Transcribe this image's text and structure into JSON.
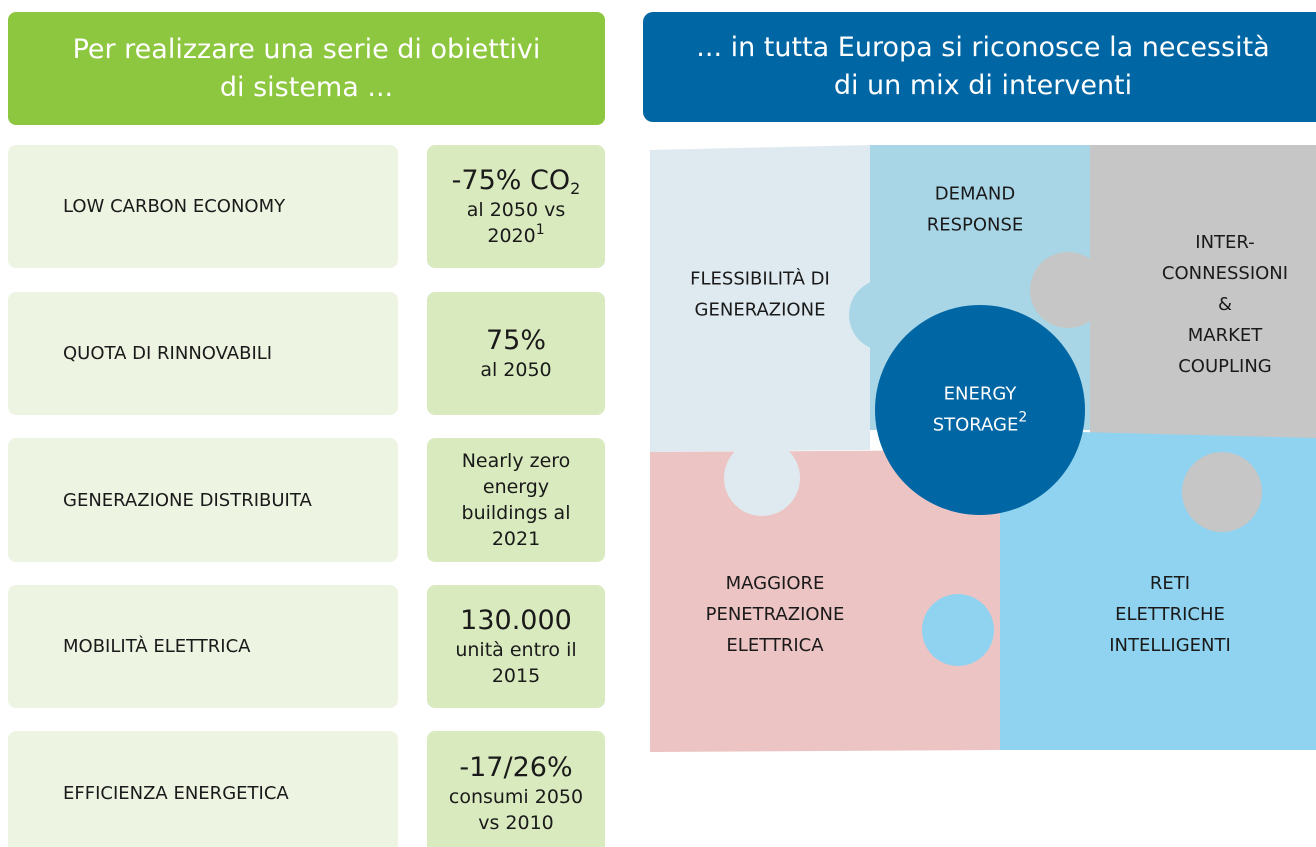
{
  "left": {
    "header": "Per realizzare una serie di obiettivi di sistema ...",
    "rows": [
      {
        "label": "LOW CARBON ECONOMY",
        "headline": "-75% CO",
        "headline_sub": "2",
        "detail": "al 2050 vs 2020",
        "detail_sup": "1"
      },
      {
        "label": "QUOTA DI RINNOVABILI",
        "headline": "75%",
        "detail": "al 2050"
      },
      {
        "label": "GENERAZIONE DISTRIBUITA",
        "detail": "Nearly zero energy buildings al 2021"
      },
      {
        "label": "MOBILITÀ ELETTRICA",
        "headline": "130.000",
        "detail": "unità entro il 2015"
      },
      {
        "label": "EFFICIENZA ENERGETICA",
        "headline": "-17/26%",
        "detail": "consumi 2050 vs 2010"
      }
    ]
  },
  "right": {
    "header": "... in tutta Europa si riconosce la necessità di un mix di interventi",
    "pieces": {
      "flessibilita": [
        "FLESSIBILITÀ DI",
        "GENERAZIONE"
      ],
      "demand": [
        "DEMAND",
        "RESPONSE"
      ],
      "interconnessioni": [
        "INTER-",
        "CONNESSIONI",
        "&",
        "MARKET",
        "COUPLING"
      ],
      "maggiore": [
        "MAGGIORE",
        "PENETRAZIONE",
        "ELETTRICA"
      ],
      "reti": [
        "RETI",
        "ELETTRICHE",
        "INTELLIGENTI"
      ]
    },
    "center": {
      "lines": [
        "ENERGY",
        "STORAGE"
      ],
      "sup": "2"
    }
  }
}
